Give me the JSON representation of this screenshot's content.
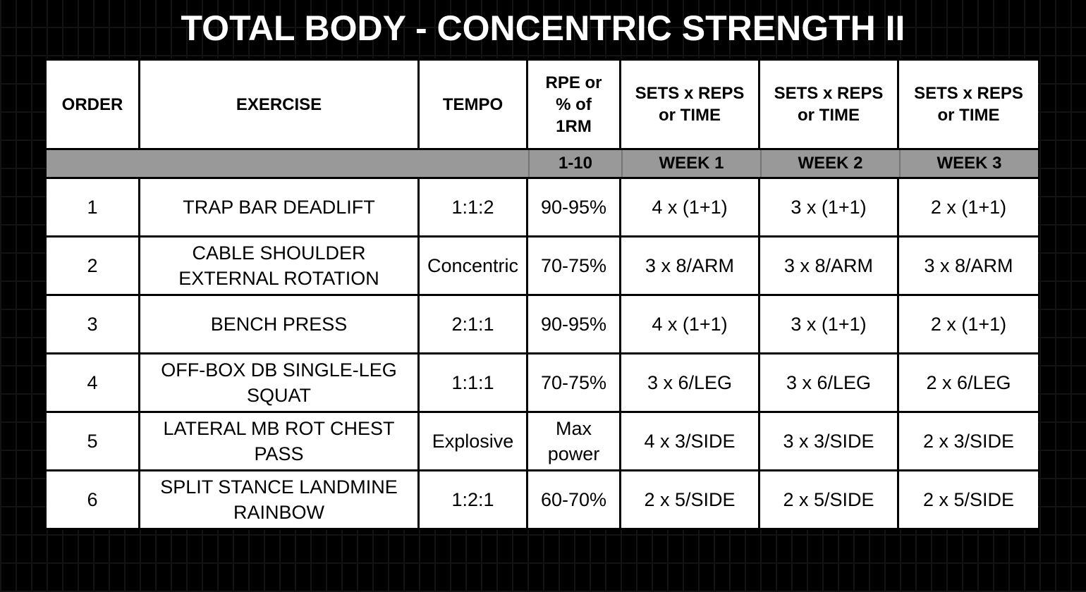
{
  "title": "TOTAL BODY - CONCENTRIC STRENGTH II",
  "colors": {
    "background": "#000000",
    "background_grid_line": "#131313",
    "cell_background": "#ffffff",
    "subheader_background": "#999999",
    "border": "#000000",
    "title_text": "#ffffff",
    "cell_text": "#000000"
  },
  "table": {
    "columns": [
      {
        "id": "order",
        "label": "ORDER",
        "sub": ""
      },
      {
        "id": "exercise",
        "label": "EXERCISE",
        "sub": ""
      },
      {
        "id": "tempo",
        "label": "TEMPO",
        "sub": ""
      },
      {
        "id": "rpe",
        "label": "RPE or % of 1RM",
        "sub": "1-10"
      },
      {
        "id": "week1",
        "label": "SETS x REPS or TIME",
        "sub": "WEEK 1"
      },
      {
        "id": "week2",
        "label": "SETS x REPS or TIME",
        "sub": "WEEK 2"
      },
      {
        "id": "week3",
        "label": "SETS x REPS or TIME",
        "sub": "WEEK 3"
      }
    ],
    "rows": [
      {
        "order": "1",
        "exercise": "TRAP BAR DEADLIFT",
        "tempo": "1:1:2",
        "rpe": "90-95%",
        "week1": "4 x (1+1)",
        "week2": "3 x (1+1)",
        "week3": "2 x (1+1)"
      },
      {
        "order": "2",
        "exercise": "CABLE SHOULDER EXTERNAL ROTATION",
        "tempo": "Concentric",
        "rpe": "70-75%",
        "week1": "3 x 8/ARM",
        "week2": "3 x 8/ARM",
        "week3": "3 x 8/ARM"
      },
      {
        "order": "3",
        "exercise": "BENCH PRESS",
        "tempo": "2:1:1",
        "rpe": "90-95%",
        "week1": "4 x (1+1)",
        "week2": "3 x (1+1)",
        "week3": "2 x (1+1)"
      },
      {
        "order": "4",
        "exercise": "OFF-BOX DB SINGLE-LEG SQUAT",
        "tempo": "1:1:1",
        "rpe": "70-75%",
        "week1": "3 x 6/LEG",
        "week2": "3 x 6/LEG",
        "week3": "2 x 6/LEG"
      },
      {
        "order": "5",
        "exercise": "LATERAL MB ROT CHEST PASS",
        "tempo": "Explosive",
        "rpe": "Max power",
        "week1": "4 x 3/SIDE",
        "week2": "3 x 3/SIDE",
        "week3": "2 x 3/SIDE"
      },
      {
        "order": "6",
        "exercise": "SPLIT STANCE LANDMINE RAINBOW",
        "tempo": "1:2:1",
        "rpe": "60-70%",
        "week1": "2 x 5/SIDE",
        "week2": "2 x 5/SIDE",
        "week3": "2 x 5/SIDE"
      }
    ]
  }
}
